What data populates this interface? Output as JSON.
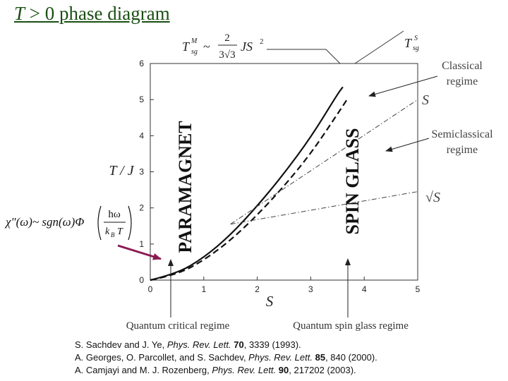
{
  "slide": {
    "title_prefix": "T",
    "title_rest": " > 0 phase diagram"
  },
  "axes": {
    "y_label": "T / J",
    "x_label": "S"
  },
  "formulas": {
    "tsg_m_lhs": "T",
    "tsg_m_sub": "sg",
    "tsg_m_sup": "M",
    "tsg_m_approx": "~",
    "tsg_m_num": "2",
    "tsg_m_den": "3√3",
    "tsg_m_js": "JS",
    "tsg_m_pow": "2",
    "tsg_s_lhs": "T",
    "tsg_s_sub": "sg",
    "tsg_s_sup": "S",
    "chi": "χ\"(ω)~ sgn(ω)Φ",
    "chi_num": "hω",
    "chi_den_k": "k",
    "chi_den_b": "B",
    "chi_den_t": "T"
  },
  "labels": {
    "classical_line1": "Classical",
    "classical_line2": "regime",
    "s_label": "S",
    "semiclassical_line1": "Semiclassical",
    "semiclassical_line2": "regime",
    "sqrt_s_label": "√S",
    "paramagnet": "PARAMAGNET",
    "spin_glass": "SPIN GLASS",
    "quantum_critical": "Quantum critical regime",
    "quantum_spin_glass": "Quantum spin glass regime"
  },
  "references": [
    {
      "pre": "S. Sachdev and J. Ye, ",
      "journal": "Phys. Rev. Lett.",
      "vol": "70",
      "post": ", 3339 (1993)."
    },
    {
      "pre": "A. Georges, O. Parcollet, and S. Sachdev, ",
      "journal": "Phys. Rev. Lett.",
      "vol": "85",
      "post": ", 840 (2000)."
    },
    {
      "pre": "A. Camjayi and M. J. Rozenberg, ",
      "journal": "Phys. Rev. Lett.",
      "vol": "90",
      "post": ", 217202 (2003)."
    }
  ],
  "chart_data": {
    "type": "line",
    "xlabel": "S",
    "ylabel": "T / J",
    "xlim": [
      0,
      5
    ],
    "ylim": [
      0,
      6
    ],
    "x_ticks": [
      0,
      1,
      2,
      3,
      4,
      5
    ],
    "y_ticks": [
      0,
      1,
      2,
      3,
      4,
      5,
      6
    ],
    "grid": false,
    "series": [
      {
        "style": "solid",
        "x": [
          0,
          0.5,
          1.0,
          1.5,
          2.0,
          2.5,
          3.0,
          3.5,
          3.6
        ],
        "y": [
          0.0,
          0.18,
          0.62,
          1.25,
          2.05,
          2.95,
          3.95,
          5.15,
          5.35
        ]
      },
      {
        "style": "dashed",
        "x": [
          0,
          0.5,
          1.0,
          1.5,
          2.0,
          2.5,
          3.0,
          3.5,
          3.7
        ],
        "y": [
          0.0,
          0.15,
          0.55,
          1.1,
          1.8,
          2.6,
          3.5,
          4.6,
          5.05
        ]
      },
      {
        "style": "dash-dot",
        "x": [
          1.5,
          5.0
        ],
        "y": [
          1.55,
          5.0
        ]
      },
      {
        "style": "dash-dot",
        "x": [
          1.5,
          5.0
        ],
        "y": [
          1.55,
          2.45
        ]
      }
    ]
  }
}
